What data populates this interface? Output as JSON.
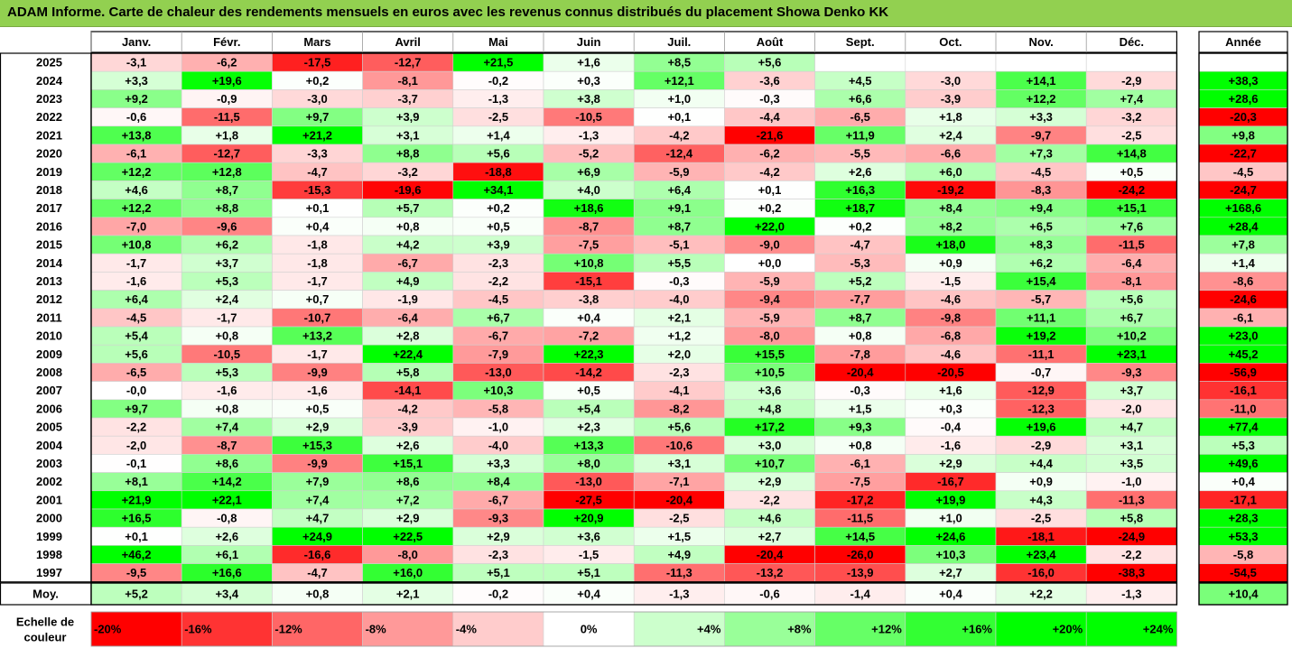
{
  "title": "ADAM Informe. Carte de chaleur des rendements mensuels en euros avec les revenus connus distribués du placement Showa Denko KK",
  "chart_data": {
    "type": "heatmap",
    "months": [
      "Janv.",
      "Févr.",
      "Mars",
      "Avril",
      "Mai",
      "Juin",
      "Juil.",
      "Août",
      "Sept.",
      "Oct.",
      "Nov.",
      "Déc."
    ],
    "year_header": "Année",
    "rows": [
      {
        "year": "2025",
        "values": [
          -3.1,
          -6.2,
          -17.5,
          -12.7,
          21.5,
          1.6,
          8.5,
          5.6,
          null,
          null,
          null,
          null
        ],
        "labels": [
          "-3,1",
          "-6,2",
          "-17,5",
          "-12,7",
          "+21,5",
          "+1,6",
          "+8,5",
          "+5,6",
          "",
          "",
          "",
          ""
        ],
        "annual": null,
        "annual_label": ""
      },
      {
        "year": "2024",
        "values": [
          3.3,
          19.6,
          0.2,
          -8.1,
          -0.2,
          0.3,
          12.1,
          -3.6,
          4.5,
          -3.0,
          14.1,
          -2.9
        ],
        "labels": [
          "+3,3",
          "+19,6",
          "+0,2",
          "-8,1",
          "-0,2",
          "+0,3",
          "+12,1",
          "-3,6",
          "+4,5",
          "-3,0",
          "+14,1",
          "-2,9"
        ],
        "annual": 38.3,
        "annual_label": "+38,3"
      },
      {
        "year": "2023",
        "values": [
          9.2,
          -0.9,
          -3.0,
          -3.7,
          -1.3,
          3.8,
          1.0,
          -0.3,
          6.6,
          -3.9,
          12.2,
          7.4
        ],
        "labels": [
          "+9,2",
          "-0,9",
          "-3,0",
          "-3,7",
          "-1,3",
          "+3,8",
          "+1,0",
          "-0,3",
          "+6,6",
          "-3,9",
          "+12,2",
          "+7,4"
        ],
        "annual": 28.6,
        "annual_label": "+28,6"
      },
      {
        "year": "2022",
        "values": [
          -0.6,
          -11.5,
          9.7,
          3.9,
          -2.5,
          -10.5,
          0.1,
          -4.4,
          -6.5,
          1.8,
          3.3,
          -3.2
        ],
        "labels": [
          "-0,6",
          "-11,5",
          "+9,7",
          "+3,9",
          "-2,5",
          "-10,5",
          "+0,1",
          "-4,4",
          "-6,5",
          "+1,8",
          "+3,3",
          "-3,2"
        ],
        "annual": -20.3,
        "annual_label": "-20,3"
      },
      {
        "year": "2021",
        "values": [
          13.8,
          1.8,
          21.2,
          3.1,
          1.4,
          -1.3,
          -4.2,
          -21.6,
          11.9,
          2.4,
          -9.7,
          -2.5
        ],
        "labels": [
          "+13,8",
          "+1,8",
          "+21,2",
          "+3,1",
          "+1,4",
          "-1,3",
          "-4,2",
          "-21,6",
          "+11,9",
          "+2,4",
          "-9,7",
          "-2,5"
        ],
        "annual": 9.8,
        "annual_label": "+9,8"
      },
      {
        "year": "2020",
        "values": [
          -6.1,
          -12.7,
          -3.3,
          8.8,
          5.6,
          -5.2,
          -12.4,
          -6.2,
          -5.5,
          -6.6,
          7.3,
          14.8
        ],
        "labels": [
          "-6,1",
          "-12,7",
          "-3,3",
          "+8,8",
          "+5,6",
          "-5,2",
          "-12,4",
          "-6,2",
          "-5,5",
          "-6,6",
          "+7,3",
          "+14,8"
        ],
        "annual": -22.7,
        "annual_label": "-22,7"
      },
      {
        "year": "2019",
        "values": [
          12.2,
          12.8,
          -4.7,
          -3.2,
          -18.8,
          6.9,
          -5.9,
          -4.2,
          2.6,
          6.0,
          -4.5,
          0.5
        ],
        "labels": [
          "+12,2",
          "+12,8",
          "-4,7",
          "-3,2",
          "-18,8",
          "+6,9",
          "-5,9",
          "-4,2",
          "+2,6",
          "+6,0",
          "-4,5",
          "+0,5"
        ],
        "annual": -4.5,
        "annual_label": "-4,5"
      },
      {
        "year": "2018",
        "values": [
          4.6,
          8.7,
          -15.3,
          -19.6,
          34.1,
          4.0,
          6.4,
          0.1,
          16.3,
          -19.2,
          -8.3,
          -24.2
        ],
        "labels": [
          "+4,6",
          "+8,7",
          "-15,3",
          "-19,6",
          "+34,1",
          "+4,0",
          "+6,4",
          "+0,1",
          "+16,3",
          "-19,2",
          "-8,3",
          "-24,2"
        ],
        "annual": -24.7,
        "annual_label": "-24,7"
      },
      {
        "year": "2017",
        "values": [
          12.2,
          8.8,
          0.1,
          5.7,
          0.2,
          18.6,
          9.1,
          0.2,
          18.7,
          8.4,
          9.4,
          15.1
        ],
        "labels": [
          "+12,2",
          "+8,8",
          "+0,1",
          "+5,7",
          "+0,2",
          "+18,6",
          "+9,1",
          "+0,2",
          "+18,7",
          "+8,4",
          "+9,4",
          "+15,1"
        ],
        "annual": 168.6,
        "annual_label": "+168,6"
      },
      {
        "year": "2016",
        "values": [
          -7.0,
          -9.6,
          0.4,
          0.8,
          0.5,
          -8.7,
          8.7,
          22.0,
          0.2,
          8.2,
          6.5,
          7.6
        ],
        "labels": [
          "-7,0",
          "-9,6",
          "+0,4",
          "+0,8",
          "+0,5",
          "-8,7",
          "+8,7",
          "+22,0",
          "+0,2",
          "+8,2",
          "+6,5",
          "+7,6"
        ],
        "annual": 28.4,
        "annual_label": "+28,4"
      },
      {
        "year": "2015",
        "values": [
          10.8,
          6.2,
          -1.8,
          4.2,
          3.9,
          -7.5,
          -5.1,
          -9.0,
          -4.7,
          18.0,
          8.3,
          -11.5
        ],
        "labels": [
          "+10,8",
          "+6,2",
          "-1,8",
          "+4,2",
          "+3,9",
          "-7,5",
          "-5,1",
          "-9,0",
          "-4,7",
          "+18,0",
          "+8,3",
          "-11,5"
        ],
        "annual": 7.8,
        "annual_label": "+7,8"
      },
      {
        "year": "2014",
        "values": [
          -1.7,
          3.7,
          -1.8,
          -6.7,
          -2.3,
          10.8,
          5.5,
          0.0,
          -5.3,
          0.9,
          6.2,
          -6.4
        ],
        "labels": [
          "-1,7",
          "+3,7",
          "-1,8",
          "-6,7",
          "-2,3",
          "+10,8",
          "+5,5",
          "+0,0",
          "-5,3",
          "+0,9",
          "+6,2",
          "-6,4"
        ],
        "annual": 1.4,
        "annual_label": "+1,4"
      },
      {
        "year": "2013",
        "values": [
          -1.6,
          5.3,
          -1.7,
          4.9,
          -2.2,
          -15.1,
          -0.3,
          -5.9,
          5.2,
          -1.5,
          15.4,
          -8.1
        ],
        "labels": [
          "-1,6",
          "+5,3",
          "-1,7",
          "+4,9",
          "-2,2",
          "-15,1",
          "-0,3",
          "-5,9",
          "+5,2",
          "-1,5",
          "+15,4",
          "-8,1"
        ],
        "annual": -8.6,
        "annual_label": "-8,6"
      },
      {
        "year": "2012",
        "values": [
          6.4,
          2.4,
          0.7,
          -1.9,
          -4.5,
          -3.8,
          -4.0,
          -9.4,
          -7.7,
          -4.6,
          -5.7,
          5.6
        ],
        "labels": [
          "+6,4",
          "+2,4",
          "+0,7",
          "-1,9",
          "-4,5",
          "-3,8",
          "-4,0",
          "-9,4",
          "-7,7",
          "-4,6",
          "-5,7",
          "+5,6"
        ],
        "annual": -24.6,
        "annual_label": "-24,6"
      },
      {
        "year": "2011",
        "values": [
          -4.5,
          -1.7,
          -10.7,
          -6.4,
          6.7,
          0.4,
          2.1,
          -5.9,
          8.7,
          -9.8,
          11.1,
          6.7
        ],
        "labels": [
          "-4,5",
          "-1,7",
          "-10,7",
          "-6,4",
          "+6,7",
          "+0,4",
          "+2,1",
          "-5,9",
          "+8,7",
          "-9,8",
          "+11,1",
          "+6,7"
        ],
        "annual": -6.1,
        "annual_label": "-6,1"
      },
      {
        "year": "2010",
        "values": [
          5.4,
          0.8,
          13.2,
          2.8,
          -6.7,
          -7.2,
          1.2,
          -8.0,
          0.8,
          -6.8,
          19.2,
          10.2
        ],
        "labels": [
          "+5,4",
          "+0,8",
          "+13,2",
          "+2,8",
          "-6,7",
          "-7,2",
          "+1,2",
          "-8,0",
          "+0,8",
          "-6,8",
          "+19,2",
          "+10,2"
        ],
        "annual": 23.0,
        "annual_label": "+23,0"
      },
      {
        "year": "2009",
        "values": [
          5.6,
          -10.5,
          -1.7,
          22.4,
          -7.9,
          22.3,
          2.0,
          15.5,
          -7.8,
          -4.6,
          -11.1,
          23.1
        ],
        "labels": [
          "+5,6",
          "-10,5",
          "-1,7",
          "+22,4",
          "-7,9",
          "+22,3",
          "+2,0",
          "+15,5",
          "-7,8",
          "-4,6",
          "-11,1",
          "+23,1"
        ],
        "annual": 45.2,
        "annual_label": "+45,2"
      },
      {
        "year": "2008",
        "values": [
          -6.5,
          5.3,
          -9.9,
          5.8,
          -13.0,
          -14.2,
          -2.3,
          10.5,
          -20.4,
          -20.5,
          -0.7,
          -9.3
        ],
        "labels": [
          "-6,5",
          "+5,3",
          "-9,9",
          "+5,8",
          "-13,0",
          "-14,2",
          "-2,3",
          "+10,5",
          "-20,4",
          "-20,5",
          "-0,7",
          "-9,3"
        ],
        "annual": -56.9,
        "annual_label": "-56,9"
      },
      {
        "year": "2007",
        "values": [
          -0.0,
          -1.6,
          -1.6,
          -14.1,
          10.3,
          0.5,
          -4.1,
          3.6,
          -0.3,
          1.6,
          -12.9,
          3.7
        ],
        "labels": [
          "-0,0",
          "-1,6",
          "-1,6",
          "-14,1",
          "+10,3",
          "+0,5",
          "-4,1",
          "+3,6",
          "-0,3",
          "+1,6",
          "-12,9",
          "+3,7"
        ],
        "annual": -16.1,
        "annual_label": "-16,1"
      },
      {
        "year": "2006",
        "values": [
          9.7,
          0.8,
          0.5,
          -4.2,
          -5.8,
          5.4,
          -8.2,
          4.8,
          1.5,
          0.3,
          -12.3,
          -2.0
        ],
        "labels": [
          "+9,7",
          "+0,8",
          "+0,5",
          "-4,2",
          "-5,8",
          "+5,4",
          "-8,2",
          "+4,8",
          "+1,5",
          "+0,3",
          "-12,3",
          "-2,0"
        ],
        "annual": -11.0,
        "annual_label": "-11,0"
      },
      {
        "year": "2005",
        "values": [
          -2.2,
          7.4,
          2.9,
          -3.9,
          -1.0,
          2.3,
          5.6,
          17.2,
          9.3,
          -0.4,
          19.6,
          4.7
        ],
        "labels": [
          "-2,2",
          "+7,4",
          "+2,9",
          "-3,9",
          "-1,0",
          "+2,3",
          "+5,6",
          "+17,2",
          "+9,3",
          "-0,4",
          "+19,6",
          "+4,7"
        ],
        "annual": 77.4,
        "annual_label": "+77,4"
      },
      {
        "year": "2004",
        "values": [
          -2.0,
          -8.7,
          15.3,
          2.6,
          -4.0,
          13.3,
          -10.6,
          3.0,
          0.8,
          -1.6,
          -2.9,
          3.1
        ],
        "labels": [
          "-2,0",
          "-8,7",
          "+15,3",
          "+2,6",
          "-4,0",
          "+13,3",
          "-10,6",
          "+3,0",
          "+0,8",
          "-1,6",
          "-2,9",
          "+3,1"
        ],
        "annual": 5.3,
        "annual_label": "+5,3"
      },
      {
        "year": "2003",
        "values": [
          -0.1,
          8.6,
          -9.9,
          15.1,
          3.3,
          8.0,
          3.1,
          10.7,
          -6.1,
          2.9,
          4.4,
          3.5
        ],
        "labels": [
          "-0,1",
          "+8,6",
          "-9,9",
          "+15,1",
          "+3,3",
          "+8,0",
          "+3,1",
          "+10,7",
          "-6,1",
          "+2,9",
          "+4,4",
          "+3,5"
        ],
        "annual": 49.6,
        "annual_label": "+49,6"
      },
      {
        "year": "2002",
        "values": [
          8.1,
          14.2,
          7.9,
          8.6,
          8.4,
          -13.0,
          -7.1,
          2.9,
          -7.5,
          -16.7,
          0.9,
          -1.0
        ],
        "labels": [
          "+8,1",
          "+14,2",
          "+7,9",
          "+8,6",
          "+8,4",
          "-13,0",
          "-7,1",
          "+2,9",
          "-7,5",
          "-16,7",
          "+0,9",
          "-1,0"
        ],
        "annual": 0.4,
        "annual_label": "+0,4"
      },
      {
        "year": "2001",
        "values": [
          21.9,
          22.1,
          7.4,
          7.2,
          -6.7,
          -27.5,
          -20.4,
          -2.2,
          -17.2,
          19.9,
          4.3,
          -11.3
        ],
        "labels": [
          "+21,9",
          "+22,1",
          "+7,4",
          "+7,2",
          "-6,7",
          "-27,5",
          "-20,4",
          "-2,2",
          "-17,2",
          "+19,9",
          "+4,3",
          "-11,3"
        ],
        "annual": -17.1,
        "annual_label": "-17,1"
      },
      {
        "year": "2000",
        "values": [
          16.5,
          -0.8,
          4.7,
          2.9,
          -9.3,
          20.9,
          -2.5,
          4.6,
          -11.5,
          1.0,
          -2.5,
          5.8
        ],
        "labels": [
          "+16,5",
          "-0,8",
          "+4,7",
          "+2,9",
          "-9,3",
          "+20,9",
          "-2,5",
          "+4,6",
          "-11,5",
          "+1,0",
          "-2,5",
          "+5,8"
        ],
        "annual": 28.3,
        "annual_label": "+28,3"
      },
      {
        "year": "1999",
        "values": [
          0.1,
          2.6,
          24.9,
          22.5,
          2.9,
          3.6,
          1.5,
          2.7,
          14.5,
          24.6,
          -18.1,
          -24.9
        ],
        "labels": [
          "+0,1",
          "+2,6",
          "+24,9",
          "+22,5",
          "+2,9",
          "+3,6",
          "+1,5",
          "+2,7",
          "+14,5",
          "+24,6",
          "-18,1",
          "-24,9"
        ],
        "annual": 53.3,
        "annual_label": "+53,3"
      },
      {
        "year": "1998",
        "values": [
          46.2,
          6.1,
          -16.6,
          -8.0,
          -2.3,
          -1.5,
          4.9,
          -20.4,
          -26.0,
          10.3,
          23.4,
          -2.2
        ],
        "labels": [
          "+46,2",
          "+6,1",
          "-16,6",
          "-8,0",
          "-2,3",
          "-1,5",
          "+4,9",
          "-20,4",
          "-26,0",
          "+10,3",
          "+23,4",
          "-2,2"
        ],
        "annual": -5.8,
        "annual_label": "-5,8"
      },
      {
        "year": "1997",
        "values": [
          -9.5,
          16.6,
          -4.7,
          16.0,
          5.1,
          5.1,
          -11.3,
          -13.2,
          -13.9,
          2.7,
          -16.0,
          -38.3
        ],
        "labels": [
          "-9,5",
          "+16,6",
          "-4,7",
          "+16,0",
          "+5,1",
          "+5,1",
          "-11,3",
          "-13,2",
          "-13,9",
          "+2,7",
          "-16,0",
          "-38,3"
        ],
        "annual": -54.5,
        "annual_label": "-54,5"
      }
    ],
    "average": {
      "label": "Moy.",
      "values": [
        5.2,
        3.4,
        0.8,
        2.1,
        -0.2,
        0.4,
        -1.3,
        -0.6,
        -1.4,
        0.4,
        2.2,
        -1.3
      ],
      "labels": [
        "+5,2",
        "+3,4",
        "+0,8",
        "+2,1",
        "-0,2",
        "+0,4",
        "-1,3",
        "-0,6",
        "-1,4",
        "+0,4",
        "+2,2",
        "-1,3"
      ],
      "annual": 10.4,
      "annual_label": "+10,4"
    },
    "scale": {
      "label_line1": "Echelle de",
      "label_line2": "couleur",
      "stops": [
        {
          "label": "-20%",
          "value": -20,
          "color": "#ff0000"
        },
        {
          "label": "-16%",
          "value": -16,
          "color": "#ff3333"
        },
        {
          "label": "-12%",
          "value": -12,
          "color": "#ff6666"
        },
        {
          "label": "-8%",
          "value": -8,
          "color": "#ff9999"
        },
        {
          "label": "-4%",
          "value": -4,
          "color": "#ffcccc"
        },
        {
          "label": "0%",
          "value": 0,
          "color": "#ffffff"
        },
        {
          "label": "+4%",
          "value": 4,
          "color": "#ccffcc"
        },
        {
          "label": "+8%",
          "value": 8,
          "color": "#99ff99"
        },
        {
          "label": "+12%",
          "value": 12,
          "color": "#66ff66"
        },
        {
          "label": "+16%",
          "value": 16,
          "color": "#33ff33"
        },
        {
          "label": "+20%",
          "value": 20,
          "color": "#00ff00"
        },
        {
          "label": "+24%",
          "value": 24,
          "color": "#00ff00"
        }
      ]
    },
    "colors": {
      "title_bar": "#92d050",
      "positive_max": "#00ff00",
      "negative_max": "#ff0000",
      "neutral": "#ffffff"
    }
  }
}
